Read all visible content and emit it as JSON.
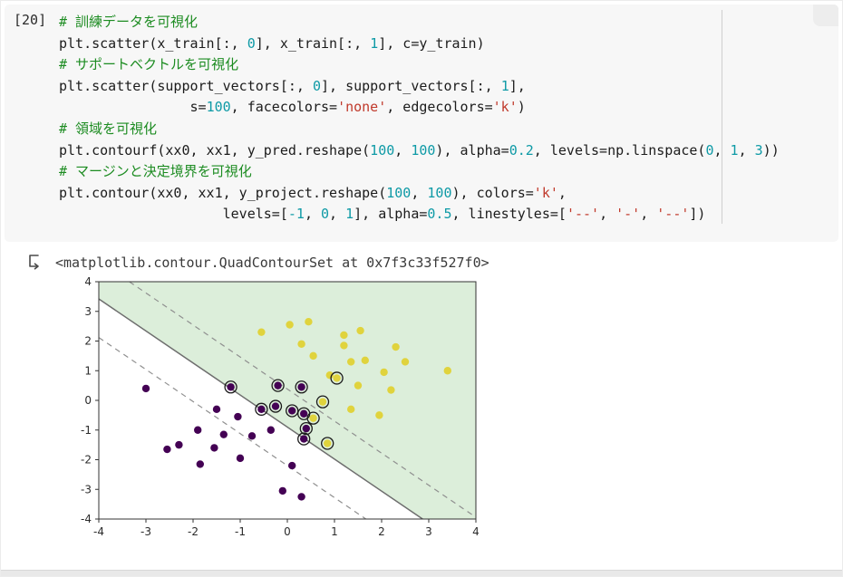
{
  "cell": {
    "execution_count": "[20]",
    "syntax_colors": {
      "comment": "#1d8c22",
      "number": "#0e9aa6",
      "string": "#c0392b",
      "plain": "#1c1c1c"
    },
    "code_lines": [
      {
        "segments": [
          {
            "t": "# 訓練データを可視化",
            "c": "comment"
          }
        ]
      },
      {
        "segments": [
          {
            "t": "plt.scatter(x_train[:, ",
            "c": "plain"
          },
          {
            "t": "0",
            "c": "number"
          },
          {
            "t": "], x_train[:, ",
            "c": "plain"
          },
          {
            "t": "1",
            "c": "number"
          },
          {
            "t": "], c=y_train)",
            "c": "plain"
          }
        ]
      },
      {
        "segments": [
          {
            "t": "# サポートベクトルを可視化",
            "c": "comment"
          }
        ]
      },
      {
        "segments": [
          {
            "t": "plt.scatter(support_vectors[:, ",
            "c": "plain"
          },
          {
            "t": "0",
            "c": "number"
          },
          {
            "t": "], support_vectors[:, ",
            "c": "plain"
          },
          {
            "t": "1",
            "c": "number"
          },
          {
            "t": "],",
            "c": "plain"
          }
        ]
      },
      {
        "segments": [
          {
            "t": "                s=",
            "c": "plain"
          },
          {
            "t": "100",
            "c": "number"
          },
          {
            "t": ", facecolors=",
            "c": "plain"
          },
          {
            "t": "'none'",
            "c": "string"
          },
          {
            "t": ", edgecolors=",
            "c": "plain"
          },
          {
            "t": "'k'",
            "c": "string"
          },
          {
            "t": ")",
            "c": "plain"
          }
        ]
      },
      {
        "segments": [
          {
            "t": "# 領域を可視化",
            "c": "comment"
          }
        ]
      },
      {
        "segments": [
          {
            "t": "plt.contourf(xx0, xx1, y_pred.reshape(",
            "c": "plain"
          },
          {
            "t": "100",
            "c": "number"
          },
          {
            "t": ", ",
            "c": "plain"
          },
          {
            "t": "100",
            "c": "number"
          },
          {
            "t": "), alpha=",
            "c": "plain"
          },
          {
            "t": "0.2",
            "c": "number"
          },
          {
            "t": ", levels=np.linspace(",
            "c": "plain"
          },
          {
            "t": "0",
            "c": "number"
          },
          {
            "t": ", ",
            "c": "plain"
          },
          {
            "t": "1",
            "c": "number"
          },
          {
            "t": ", ",
            "c": "plain"
          },
          {
            "t": "3",
            "c": "number"
          },
          {
            "t": "))",
            "c": "plain"
          }
        ]
      },
      {
        "segments": [
          {
            "t": "# マージンと決定境界を可視化",
            "c": "comment"
          }
        ]
      },
      {
        "segments": [
          {
            "t": "plt.contour(xx0, xx1, y_project.reshape(",
            "c": "plain"
          },
          {
            "t": "100",
            "c": "number"
          },
          {
            "t": ", ",
            "c": "plain"
          },
          {
            "t": "100",
            "c": "number"
          },
          {
            "t": "), colors=",
            "c": "plain"
          },
          {
            "t": "'k'",
            "c": "string"
          },
          {
            "t": ",",
            "c": "plain"
          }
        ]
      },
      {
        "segments": [
          {
            "t": "                    levels=[",
            "c": "plain"
          },
          {
            "t": "-1",
            "c": "number"
          },
          {
            "t": ", ",
            "c": "plain"
          },
          {
            "t": "0",
            "c": "number"
          },
          {
            "t": ", ",
            "c": "plain"
          },
          {
            "t": "1",
            "c": "number"
          },
          {
            "t": "], alpha=",
            "c": "plain"
          },
          {
            "t": "0.5",
            "c": "number"
          },
          {
            "t": ", linestyles=[",
            "c": "plain"
          },
          {
            "t": "'--'",
            "c": "string"
          },
          {
            "t": ", ",
            "c": "plain"
          },
          {
            "t": "'-'",
            "c": "string"
          },
          {
            "t": ", ",
            "c": "plain"
          },
          {
            "t": "'--'",
            "c": "string"
          },
          {
            "t": "])",
            "c": "plain"
          }
        ]
      }
    ]
  },
  "output": {
    "icon": "cell-output-icon",
    "text": "<matplotlib.contour.QuadContourSet at 0x7f3c33f527f0>"
  },
  "chart_data": {
    "type": "scatter",
    "title": "",
    "xlabel": "",
    "ylabel": "",
    "xlim": [
      -4,
      4
    ],
    "ylim": [
      -4,
      4
    ],
    "xticks": [
      -4,
      -3,
      -2,
      -1,
      0,
      1,
      2,
      3,
      4
    ],
    "yticks": [
      -4,
      -3,
      -2,
      -1,
      0,
      1,
      2,
      3,
      4
    ],
    "grid": false,
    "legend": "none",
    "classes": [
      {
        "name": "class-0-purple",
        "color": "#440154",
        "points": [
          [
            -3.0,
            0.4
          ],
          [
            -1.2,
            0.45
          ],
          [
            -0.2,
            0.5
          ],
          [
            0.3,
            0.45
          ],
          [
            -1.5,
            -0.3
          ],
          [
            -1.05,
            -0.55
          ],
          [
            -0.55,
            -0.3
          ],
          [
            -0.25,
            -0.2
          ],
          [
            0.1,
            -0.35
          ],
          [
            0.35,
            -0.45
          ],
          [
            0.4,
            -0.95
          ],
          [
            -1.9,
            -1.0
          ],
          [
            -1.35,
            -1.15
          ],
          [
            -0.75,
            -1.2
          ],
          [
            -0.35,
            -1.0
          ],
          [
            0.35,
            -1.3
          ],
          [
            -2.3,
            -1.5
          ],
          [
            -2.55,
            -1.65
          ],
          [
            -1.55,
            -1.6
          ],
          [
            -1.0,
            -1.95
          ],
          [
            -1.85,
            -2.15
          ],
          [
            0.1,
            -2.2
          ],
          [
            -0.1,
            -3.05
          ],
          [
            0.3,
            -3.25
          ]
        ]
      },
      {
        "name": "class-1-yellow",
        "color": "#e0d33d",
        "points": [
          [
            0.05,
            2.55
          ],
          [
            0.45,
            2.65
          ],
          [
            -0.55,
            2.3
          ],
          [
            1.2,
            2.2
          ],
          [
            1.55,
            2.35
          ],
          [
            0.3,
            1.9
          ],
          [
            1.2,
            1.85
          ],
          [
            2.3,
            1.8
          ],
          [
            0.55,
            1.5
          ],
          [
            1.35,
            1.3
          ],
          [
            1.65,
            1.35
          ],
          [
            2.5,
            1.3
          ],
          [
            3.4,
            1.0
          ],
          [
            2.05,
            0.95
          ],
          [
            0.9,
            0.85
          ],
          [
            1.05,
            0.75
          ],
          [
            1.5,
            0.5
          ],
          [
            2.2,
            0.35
          ],
          [
            1.35,
            -0.3
          ],
          [
            1.95,
            -0.5
          ],
          [
            0.75,
            -0.05
          ],
          [
            0.55,
            -0.6
          ],
          [
            0.85,
            -1.45
          ]
        ]
      }
    ],
    "support_vectors": [
      [
        -1.2,
        0.45
      ],
      [
        -0.2,
        0.5
      ],
      [
        0.3,
        0.45
      ],
      [
        -0.55,
        -0.3
      ],
      [
        -0.25,
        -0.2
      ],
      [
        0.1,
        -0.35
      ],
      [
        0.35,
        -0.45
      ],
      [
        0.4,
        -0.95
      ],
      [
        0.35,
        -1.3
      ],
      [
        0.75,
        -0.05
      ],
      [
        0.55,
        -0.6
      ],
      [
        0.85,
        -1.45
      ],
      [
        1.05,
        0.75
      ]
    ],
    "decision_boundary": {
      "slope": -1.08,
      "intercept": -0.9,
      "style": "solid",
      "color": "#6e6e6e"
    },
    "margins": [
      {
        "slope": -1.08,
        "intercept": 0.38,
        "style": "dashed"
      },
      {
        "slope": -1.08,
        "intercept": -2.2,
        "style": "dashed"
      }
    ],
    "regions": {
      "upper_fill": "#dceeda",
      "lower_fill": "#ffffff"
    },
    "support_ring": {
      "stroke": "#1a1a1a",
      "radius": 6.5
    },
    "axis_color": "#333333",
    "tick_label_color": "#2b2b2b",
    "margin_line_color": "#8f8f8f"
  }
}
